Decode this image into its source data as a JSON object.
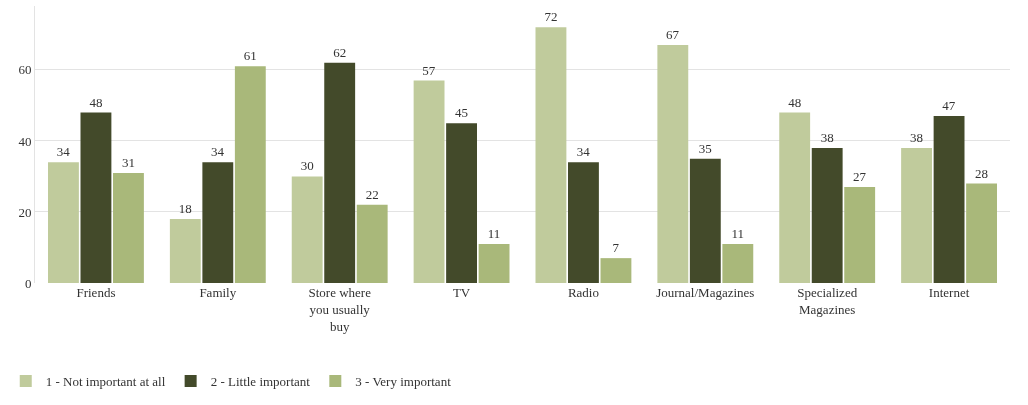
{
  "chart_data": {
    "type": "bar",
    "categories": [
      "Friends",
      "Family",
      "Store where you usually buy",
      "TV",
      "Radio",
      "Journal/Magazines",
      "Specialized Magazines",
      "Internet"
    ],
    "series": [
      {
        "name": "1 - Not important at all",
        "color": "#c0cb9c",
        "values": [
          34,
          18,
          30,
          57,
          72,
          67,
          48,
          38
        ]
      },
      {
        "name": "2 - Little important",
        "color": "#434a2a",
        "values": [
          48,
          34,
          62,
          45,
          34,
          35,
          38,
          47
        ]
      },
      {
        "name": "3 - Very important",
        "color": "#a9b87a",
        "values": [
          31,
          61,
          22,
          11,
          7,
          11,
          27,
          28
        ]
      }
    ],
    "ylim": [
      0,
      78
    ],
    "yticks": [
      0,
      20,
      40,
      60
    ],
    "grid": "y",
    "legend": "bottom left",
    "data_labels": true
  }
}
